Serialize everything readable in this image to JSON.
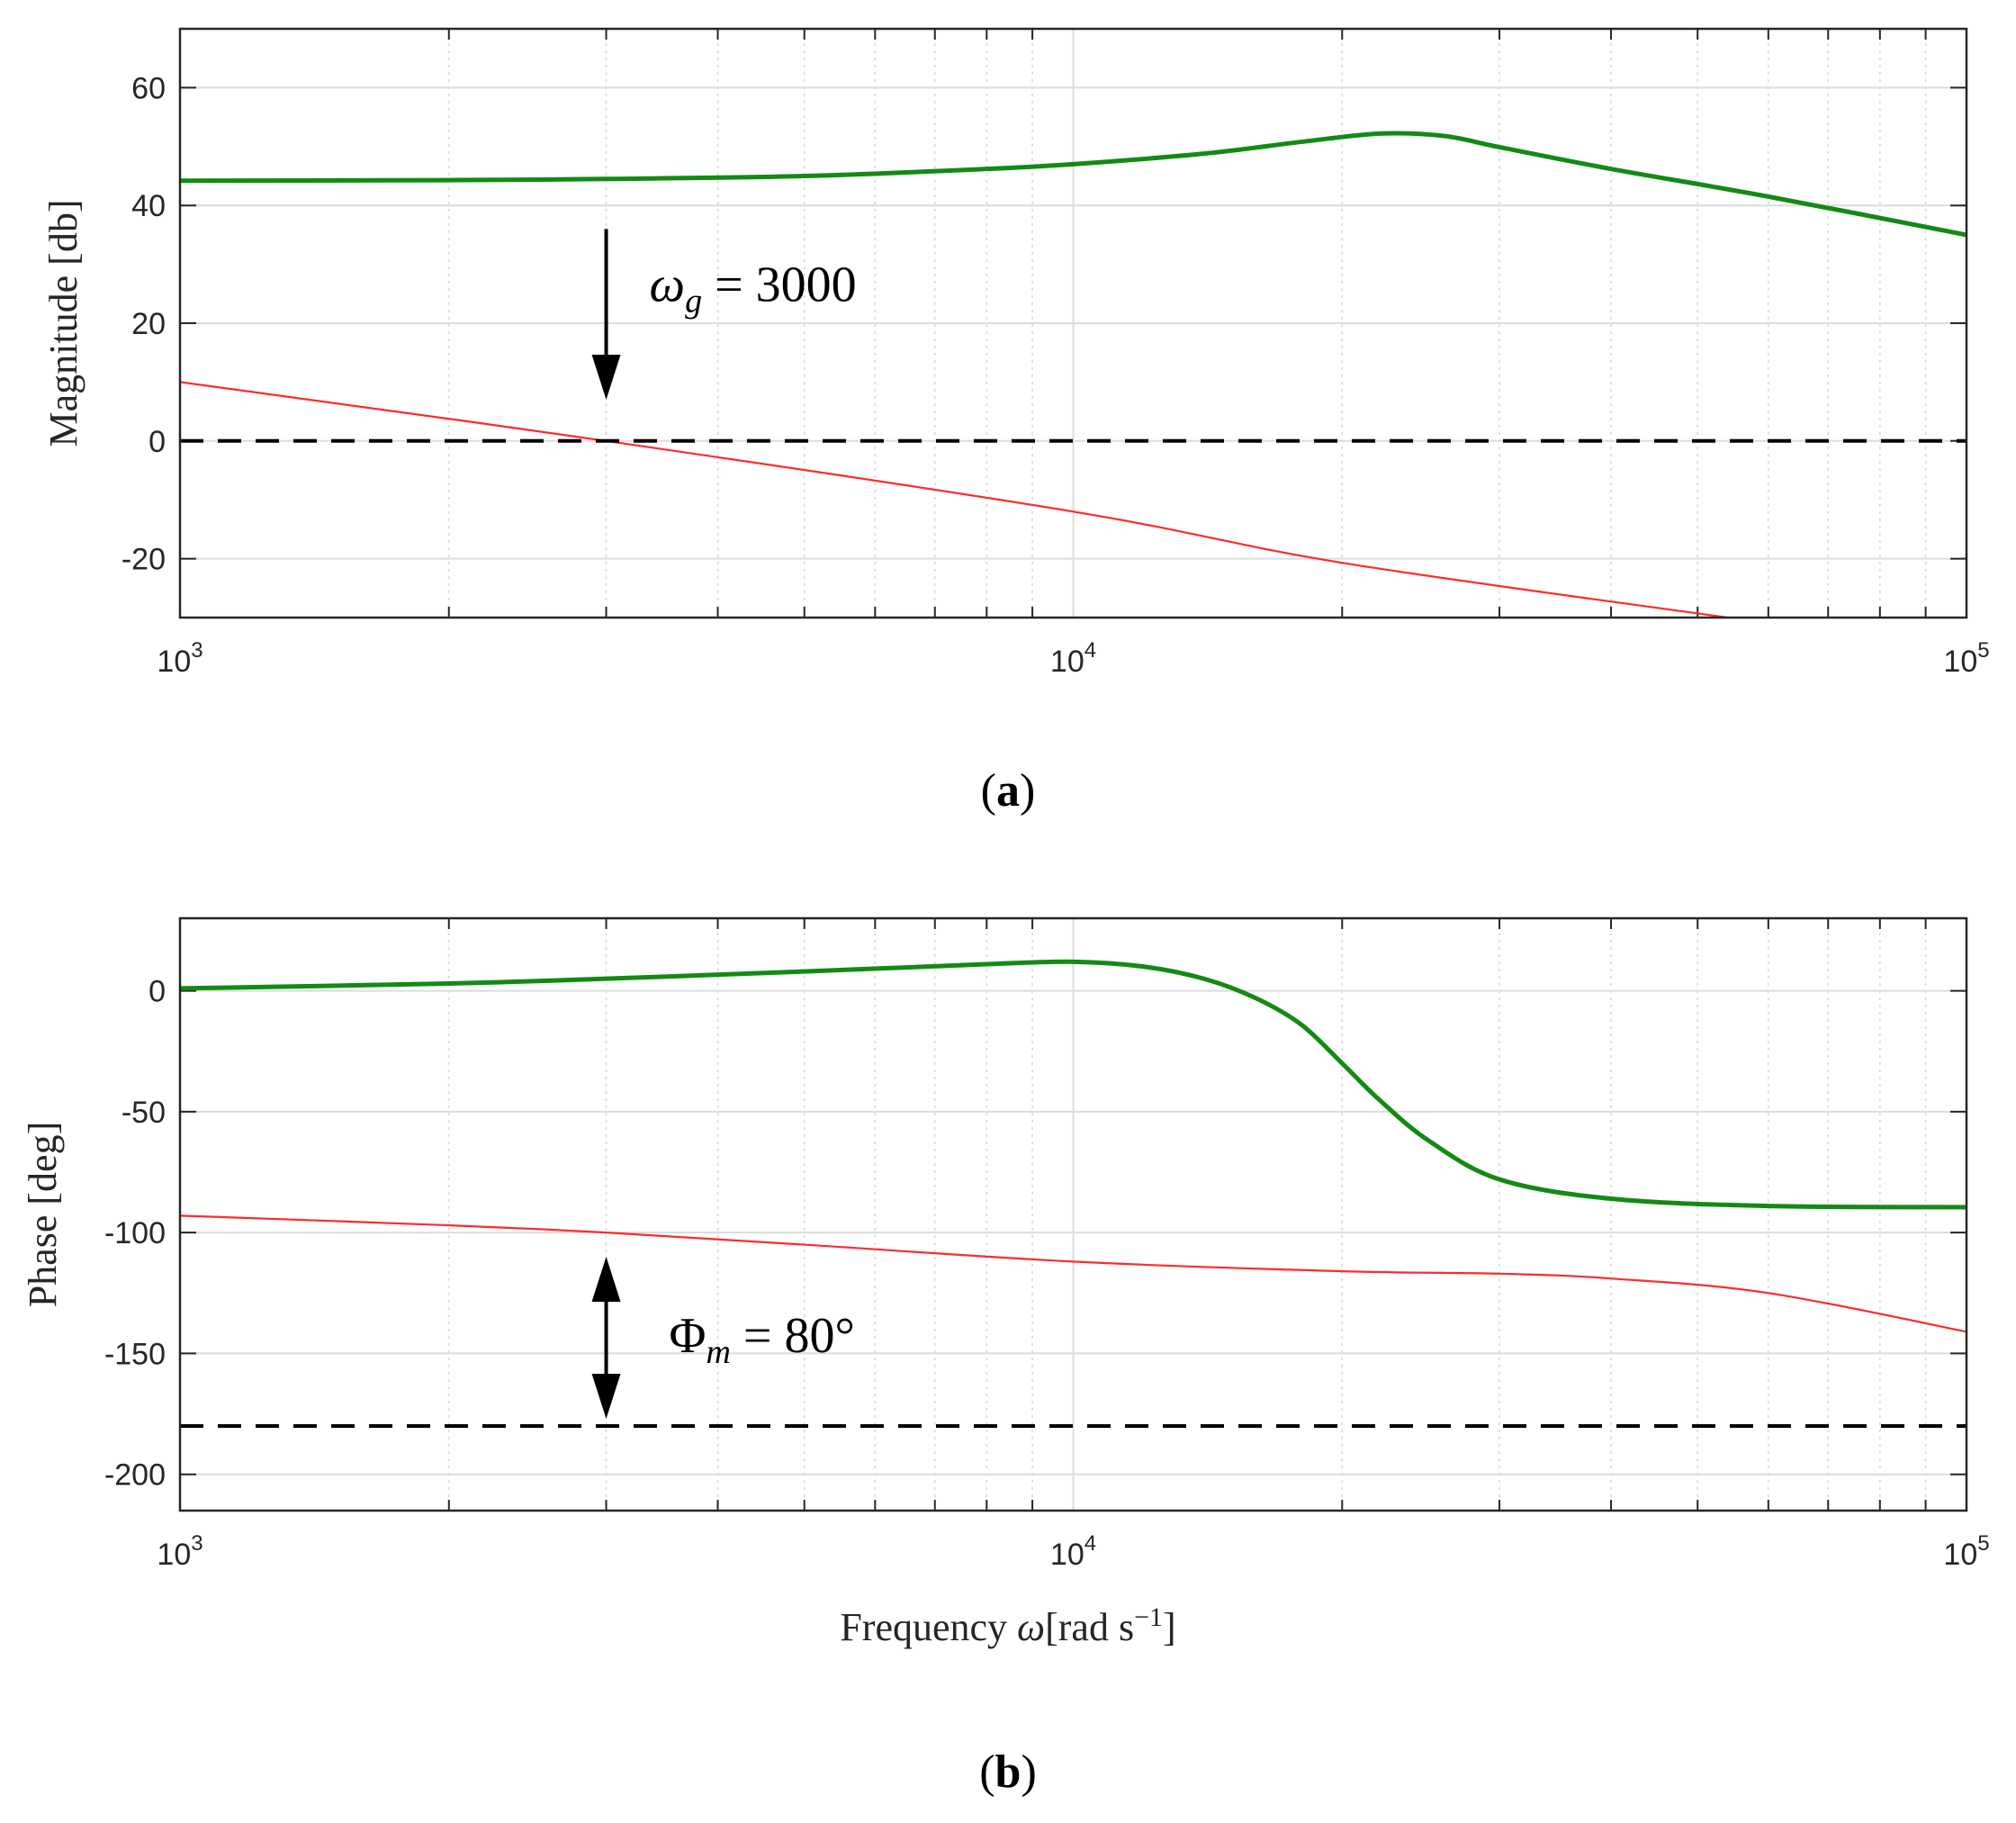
{
  "colors": {
    "green": "#138a13",
    "red": "#ff2a2a",
    "grid": "#dcdcdc",
    "axis": "#262626",
    "ref": "#000000"
  },
  "chart_data": [
    {
      "id": "a",
      "type": "line",
      "caption": "a",
      "xscale": "log",
      "xlim": [
        1000,
        100000
      ],
      "ylim": [
        -30,
        70
      ],
      "ylabel": "Magnitude [db]",
      "xlabel": "",
      "yticks": [
        "60",
        "40",
        "20",
        "0",
        "-20"
      ],
      "ytick_values": [
        60,
        40,
        20,
        0,
        -20
      ],
      "xtick_base": "10",
      "xtick_exps": [
        "3",
        "4",
        "5"
      ],
      "annotation": {
        "var": "ω",
        "sub": "g",
        "rest": " = 3000",
        "arrow_x": 3000,
        "arrow_from": 36,
        "arrow_to": 7
      },
      "series": [
        {
          "name": "green",
          "color": "#138a13",
          "x": [
            1000,
            2000,
            3000,
            5000,
            8000,
            10000,
            14000,
            18000,
            22000,
            26000,
            30000,
            40000,
            60000,
            100000
          ],
          "y": [
            44.2,
            44.3,
            44.5,
            45.0,
            46.2,
            47.0,
            48.8,
            50.8,
            52.2,
            51.8,
            49.9,
            46.2,
            41.5,
            35.0
          ]
        },
        {
          "name": "red",
          "color": "#ff2a2a",
          "x": [
            1000,
            3000,
            10000,
            20000,
            54000
          ],
          "y": [
            10,
            0,
            -12,
            -20.7,
            -30
          ]
        },
        {
          "name": "reference",
          "color": "#000000",
          "dashed": true,
          "x": [
            1000,
            100000
          ],
          "y": [
            0,
            0
          ]
        }
      ]
    },
    {
      "id": "b",
      "type": "line",
      "caption": "b",
      "xscale": "log",
      "xlim": [
        1000,
        100000
      ],
      "ylim": [
        -215,
        30
      ],
      "ylabel": "Phase [deg]",
      "xlabel_pre": "Frequency ",
      "xlabel_var": "ω",
      "xlabel_unit": "[rad s",
      "xlabel_sup": "−1",
      "xlabel_post": "]",
      "yticks": [
        "0",
        "-50",
        "-100",
        "-150",
        "-200"
      ],
      "ytick_values": [
        0,
        -50,
        -100,
        -150,
        -200
      ],
      "xtick_base": "10",
      "xtick_exps": [
        "3",
        "4",
        "5"
      ],
      "annotation": {
        "var": "Φ",
        "sub": "m",
        "rest": " = 80°",
        "arrow_x": 3000,
        "arrow_from": -110,
        "arrow_to": -177
      },
      "series": [
        {
          "name": "green",
          "color": "#138a13",
          "x": [
            1000,
            2000,
            3000,
            5000,
            8000,
            10000,
            12000,
            14000,
            16000,
            18000,
            20000,
            22000,
            25000,
            30000,
            40000,
            60000,
            100000
          ],
          "y": [
            1,
            3,
            5,
            8,
            11,
            12,
            10,
            5,
            -3,
            -14,
            -30,
            -45,
            -62,
            -78,
            -86,
            -89,
            -89.5
          ]
        },
        {
          "name": "red",
          "color": "#ff2a2a",
          "x": [
            1000,
            2000,
            3000,
            5000,
            10000,
            20000,
            30000,
            40000,
            60000,
            100000
          ],
          "y": [
            -93,
            -97,
            -100,
            -105,
            -112,
            -116,
            -117,
            -119,
            -125,
            -141
          ]
        },
        {
          "name": "reference",
          "color": "#000000",
          "dashed": true,
          "x": [
            1000,
            100000
          ],
          "y": [
            -180,
            -180
          ]
        }
      ]
    }
  ]
}
